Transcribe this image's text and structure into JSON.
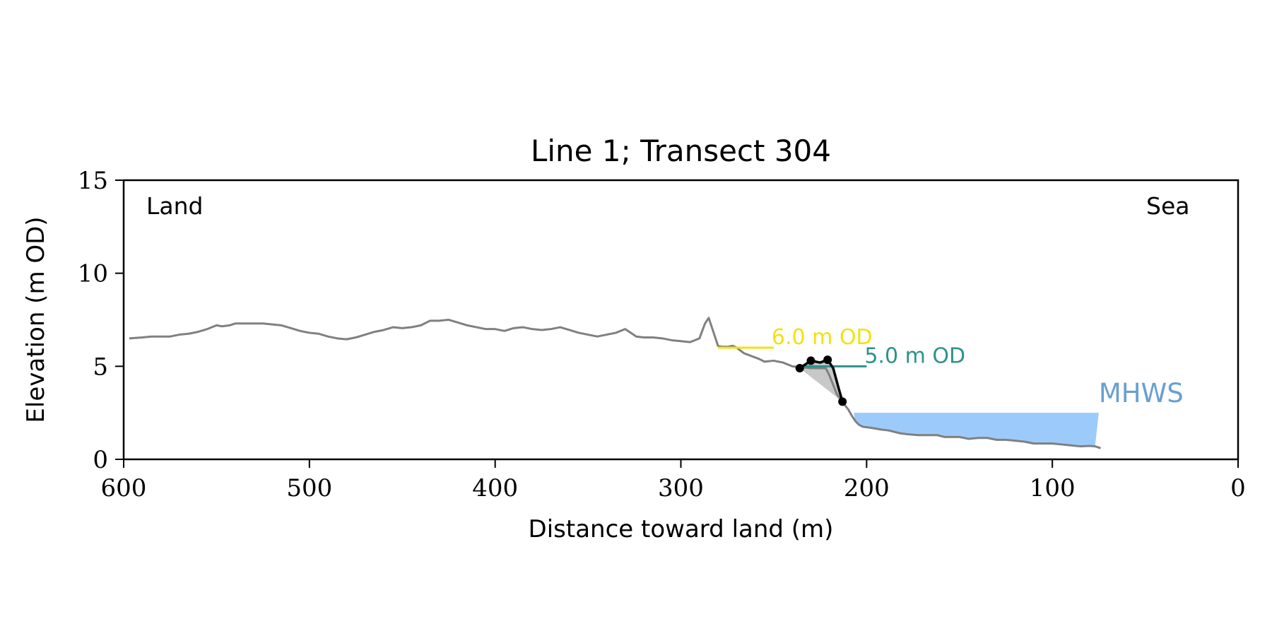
{
  "chart_data": {
    "type": "line",
    "title": "Line 1; Transect 304",
    "xlabel": "Distance toward land (m)",
    "ylabel": "Elevation (m OD)",
    "xlim": [
      600,
      0
    ],
    "ylim": [
      0,
      15
    ],
    "xticks": [
      600,
      500,
      400,
      300,
      200,
      100,
      0
    ],
    "xtick_labels": [
      "600",
      "500",
      "400",
      "300",
      "200",
      "100",
      "0"
    ],
    "yticks": [
      0,
      5,
      10,
      15
    ],
    "ytick_labels": [
      "0",
      "5",
      "10",
      "15"
    ],
    "grid": false,
    "annotations": [
      {
        "text": "Land",
        "position": "top-left"
      },
      {
        "text": "Sea",
        "position": "top-right"
      }
    ],
    "colors": {
      "profile": "#808080",
      "cliff": "#000000",
      "cliff_fill": "#c8c8c8",
      "line_6m": "#f2e20f",
      "line_5m": "#2a9389",
      "mhws_fill": "#9ccbfb",
      "mhws_text": "#6a9fd0"
    },
    "profile": {
      "x": [
        597,
        590,
        585,
        580,
        575,
        570,
        565,
        560,
        555,
        550,
        547,
        543,
        540,
        535,
        530,
        525,
        520,
        515,
        510,
        505,
        500,
        495,
        490,
        485,
        480,
        475,
        470,
        465,
        460,
        455,
        450,
        445,
        440,
        435,
        430,
        425,
        420,
        415,
        410,
        405,
        400,
        395,
        390,
        385,
        380,
        375,
        370,
        365,
        360,
        355,
        350,
        345,
        340,
        335,
        330,
        327,
        324,
        320,
        315,
        310,
        305,
        300,
        295,
        290,
        287,
        285,
        283,
        280,
        278,
        275,
        272,
        270,
        266,
        262,
        258,
        255,
        250,
        245,
        240,
        236,
        230,
        226,
        222,
        220,
        218,
        216,
        214,
        212,
        210,
        208,
        206,
        204,
        202,
        198,
        192,
        188,
        182,
        178,
        172,
        168,
        162,
        158,
        150,
        145,
        140,
        135,
        130,
        125,
        120,
        115,
        110,
        105,
        100,
        95,
        90,
        85,
        80,
        77,
        74
      ],
      "y": [
        6.5,
        6.55,
        6.6,
        6.6,
        6.6,
        6.7,
        6.75,
        6.85,
        7.0,
        7.2,
        7.15,
        7.2,
        7.3,
        7.3,
        7.3,
        7.3,
        7.25,
        7.2,
        7.05,
        6.9,
        6.8,
        6.75,
        6.6,
        6.5,
        6.45,
        6.55,
        6.7,
        6.85,
        6.95,
        7.1,
        7.05,
        7.1,
        7.2,
        7.45,
        7.45,
        7.5,
        7.35,
        7.2,
        7.1,
        7.0,
        7.0,
        6.9,
        7.05,
        7.1,
        7.0,
        6.95,
        7.0,
        7.1,
        6.95,
        6.8,
        6.7,
        6.6,
        6.7,
        6.8,
        7.0,
        6.8,
        6.6,
        6.55,
        6.55,
        6.5,
        6.4,
        6.35,
        6.3,
        6.5,
        7.3,
        7.6,
        7.0,
        6.1,
        6.05,
        6.05,
        6.1,
        6.0,
        5.7,
        5.55,
        5.4,
        5.25,
        5.3,
        5.2,
        5.0,
        4.95,
        4.9,
        4.9,
        4.9,
        4.5,
        4.0,
        3.5,
        3.2,
        2.95,
        2.7,
        2.35,
        2.05,
        1.85,
        1.75,
        1.7,
        1.6,
        1.55,
        1.4,
        1.35,
        1.3,
        1.3,
        1.3,
        1.2,
        1.2,
        1.1,
        1.15,
        1.15,
        1.05,
        1.05,
        1.0,
        0.95,
        0.85,
        0.85,
        0.85,
        0.8,
        0.75,
        0.7,
        0.72,
        0.7,
        0.6
      ]
    },
    "cliff": {
      "x": [
        236,
        230,
        225,
        221,
        218,
        215,
        213
      ],
      "y": [
        4.9,
        5.3,
        5.2,
        5.35,
        4.9,
        3.8,
        3.1
      ],
      "markers_x": [
        236,
        230,
        221,
        213
      ],
      "markers_y": [
        4.9,
        5.3,
        5.35,
        3.1
      ]
    },
    "reference_lines": [
      {
        "label": "6.0 m OD",
        "y": 6.0,
        "x_start": 280,
        "x_end": 250,
        "color": "#f2e20f"
      },
      {
        "label": "5.0 m OD",
        "y": 5.0,
        "x_start": 236,
        "x_end": 200,
        "color": "#2a9389"
      }
    ],
    "mhws": {
      "label": "MHWS",
      "level": 2.5,
      "x_start": 207,
      "x_end": 75,
      "color": "#9ccbfb"
    }
  }
}
